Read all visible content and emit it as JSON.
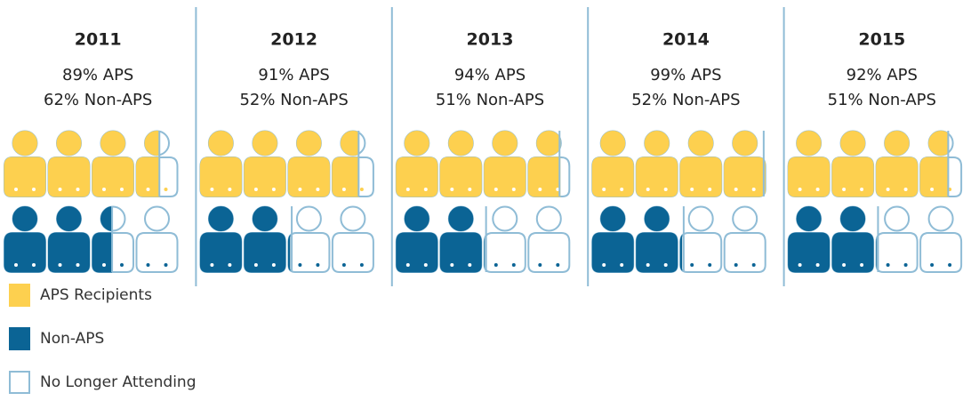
{
  "chart_data": {
    "type": "pictogram",
    "categories": [
      "2011",
      "2012",
      "2013",
      "2014",
      "2015"
    ],
    "series": [
      {
        "name": "APS Recipients",
        "color": "#fdd04f",
        "values": [
          89,
          91,
          94,
          99,
          92
        ],
        "value_labels": [
          "89% APS",
          "91% APS",
          "94% APS",
          "99% APS",
          "92% APS"
        ]
      },
      {
        "name": "Non-APS",
        "color": "#0b6495",
        "values": [
          62,
          52,
          51,
          52,
          51
        ],
        "value_labels": [
          "62% Non-APS",
          "52% Non-APS",
          "51% Non-APS",
          "52% Non-APS",
          "51% Non-APS"
        ]
      }
    ],
    "remainder": {
      "name": "No Longer Attending",
      "color": "#8fbcd6"
    }
  }
}
